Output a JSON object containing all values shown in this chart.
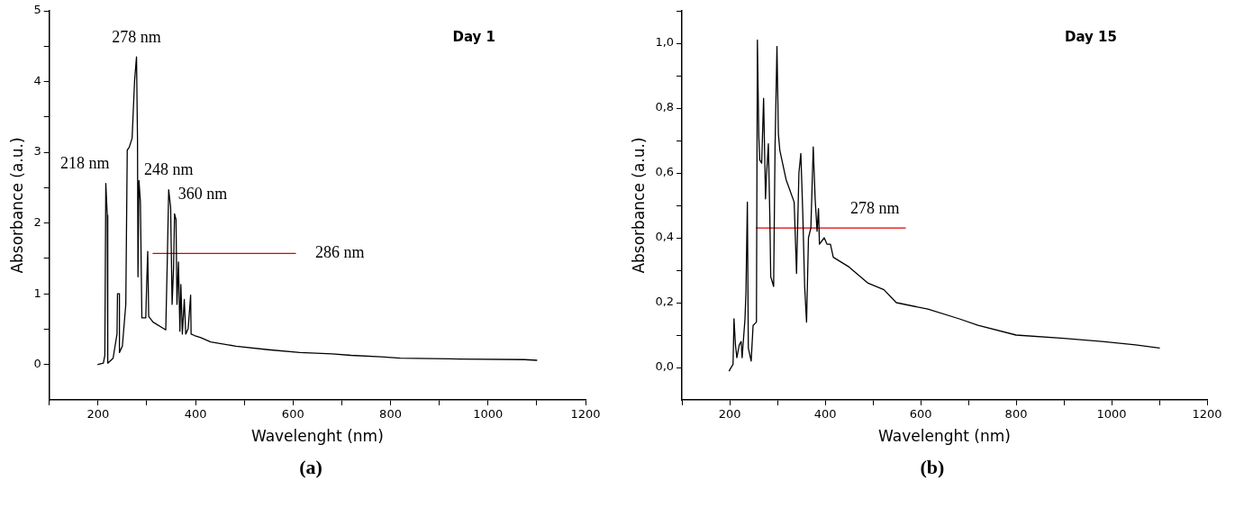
{
  "chart_data": [
    {
      "type": "line",
      "xlabel": "Wavelenght (nm)",
      "ylabel": "Absorbance (a.u.)",
      "xlim": [
        100,
        1200
      ],
      "ylim": [
        -0.5,
        5
      ],
      "xticks": [
        {
          "value": 100,
          "label": null
        },
        200,
        {
          "value": 300,
          "label": null
        },
        400,
        {
          "value": 500,
          "label": null
        },
        600,
        {
          "value": 700,
          "label": null
        },
        800,
        {
          "value": 900,
          "label": null
        },
        1000,
        {
          "value": 1100,
          "label": null
        },
        1200
      ],
      "yticks": [
        0,
        {
          "value": 0.5,
          "label": null
        },
        1,
        {
          "value": 1.5,
          "label": null
        },
        2,
        {
          "value": 2.5,
          "label": null
        },
        3,
        {
          "value": 3.5,
          "label": null
        },
        4,
        {
          "value": 4.5,
          "label": null
        },
        5
      ],
      "grid": false,
      "legend": false,
      "marker": "none",
      "line_style": "solid",
      "series": [
        {
          "type": "line",
          "color": "#000000",
          "x": [
            200,
            211,
            214,
            216,
            219,
            220,
            231,
            239,
            240,
            244,
            244,
            250,
            257,
            260,
            264,
            270,
            275,
            279,
            281,
            282,
            284,
            287,
            290,
            298,
            300,
            302,
            304,
            313,
            339,
            342,
            345,
            349,
            352,
            355,
            357,
            360,
            362,
            365,
            368,
            370,
            373,
            377,
            380,
            385,
            390,
            391,
            398,
            411,
            431,
            483,
            549,
            614,
            680,
            719,
            780,
            820,
            920,
            1075,
            1100
          ],
          "values": [
            0,
            0.02,
            0.13,
            2.56,
            2.11,
            0.02,
            0.09,
            0.43,
            1.0,
            1.0,
            0.17,
            0.26,
            0.85,
            3.03,
            3.07,
            3.2,
            4.01,
            4.35,
            3.2,
            1.24,
            2.6,
            2.3,
            0.66,
            0.66,
            1.17,
            1.6,
            0.68,
            0.6,
            0.49,
            1.43,
            2.47,
            2.22,
            0.85,
            1.37,
            2.13,
            2.05,
            0.85,
            1.45,
            0.47,
            1.13,
            0.43,
            0.92,
            0.43,
            0.51,
            0.98,
            0.43,
            0.41,
            0.38,
            0.32,
            0.26,
            0.21,
            0.17,
            0.15,
            0.13,
            0.11,
            0.09,
            0.08,
            0.07,
            0.06
          ]
        },
        {
          "type": "line",
          "color": "#e00000",
          "x": [
            313,
            605
          ],
          "values": [
            1.57,
            1.57
          ]
        }
      ],
      "annotations": [
        "Day 1",
        "(a)",
        {
          "text": "278 nm",
          "x": 279,
          "y": 4.35
        },
        {
          "text": "218 nm",
          "x": 216,
          "y": 2.56
        },
        {
          "text": "248 nm",
          "x": 345,
          "y": 2.47
        },
        {
          "text": "360 nm",
          "x": 357,
          "y": 2.13
        },
        {
          "text": "286 nm",
          "x": 605,
          "y": 1.57
        }
      ]
    },
    {
      "type": "line",
      "xlabel": "Wavelenght (nm)",
      "ylabel": "Absorbance (a.u.)",
      "xlim": [
        100,
        1200
      ],
      "ylim": [
        -0.1,
        1.1
      ],
      "xticks": [
        {
          "value": 100,
          "label": null
        },
        200,
        {
          "value": 300,
          "label": null
        },
        400,
        {
          "value": 500,
          "label": null
        },
        600,
        {
          "value": 700,
          "label": null
        },
        800,
        {
          "value": 900,
          "label": null
        },
        1000,
        {
          "value": 1100,
          "label": null
        },
        1200
      ],
      "yticks": [
        {
          "value": 0,
          "label": "0,0"
        },
        {
          "value": 0.1,
          "label": null
        },
        {
          "value": 0.2,
          "label": "0,2"
        },
        {
          "value": 0.3,
          "label": null
        },
        {
          "value": 0.4,
          "label": "0,4"
        },
        {
          "value": 0.5,
          "label": null
        },
        {
          "value": 0.6,
          "label": "0,6"
        },
        {
          "value": 0.7,
          "label": null
        },
        {
          "value": 0.8,
          "label": "0,8"
        },
        {
          "value": 0.9,
          "label": null
        },
        {
          "value": 1.0,
          "label": "1,0"
        },
        {
          "value": 1.1,
          "label": null
        }
      ],
      "grid": false,
      "legend": false,
      "marker": "none",
      "line_style": "solid",
      "series": [
        {
          "type": "line",
          "color": "#000000",
          "x": [
            199,
            207,
            209,
            212,
            215,
            220,
            224,
            226,
            232,
            234,
            237,
            239,
            245,
            249,
            256,
            258,
            261,
            263,
            267,
            271,
            275,
            277,
            281,
            284,
            286,
            292,
            295,
            299,
            302,
            305,
            318,
            335,
            340,
            345,
            349,
            353,
            357,
            361,
            365,
            370,
            375,
            379,
            383,
            386,
            388,
            398,
            404,
            411,
            417,
            450,
            490,
            523,
            549,
            615,
            681,
            720,
            800,
            900,
            980,
            1050,
            1100
          ],
          "values": [
            -0.01,
            0.01,
            0.15,
            0.07,
            0.03,
            0.07,
            0.08,
            0.03,
            0.15,
            0.23,
            0.51,
            0.06,
            0.02,
            0.13,
            0.14,
            1.01,
            0.71,
            0.64,
            0.63,
            0.83,
            0.52,
            0.59,
            0.69,
            0.47,
            0.28,
            0.25,
            0.68,
            0.99,
            0.72,
            0.67,
            0.58,
            0.51,
            0.29,
            0.6,
            0.66,
            0.48,
            0.25,
            0.14,
            0.4,
            0.43,
            0.68,
            0.52,
            0.42,
            0.49,
            0.38,
            0.4,
            0.38,
            0.38,
            0.34,
            0.31,
            0.26,
            0.24,
            0.2,
            0.18,
            0.15,
            0.13,
            0.1,
            0.09,
            0.08,
            0.07,
            0.06
          ]
        },
        {
          "type": "line",
          "color": "#e00000",
          "x": [
            256,
            568
          ],
          "values": [
            0.43,
            0.43
          ]
        }
      ],
      "annotations": [
        "Day 15",
        "(b)",
        {
          "text": "278 nm",
          "x": 504,
          "y": 0.43
        }
      ]
    }
  ]
}
